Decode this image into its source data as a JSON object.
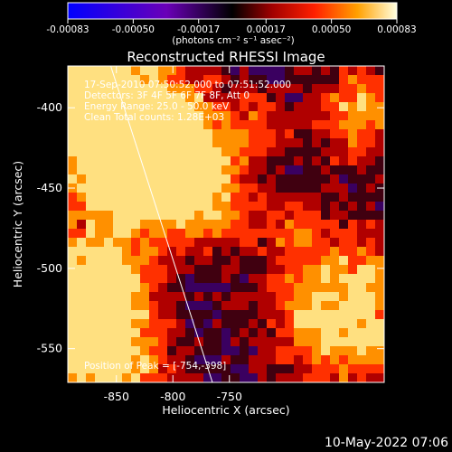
{
  "chart_data": {
    "type": "heatmap",
    "title": "Reconstructed RHESSI Image",
    "xlabel": "Heliocentric X (arcsec)",
    "ylabel": "Heliocentric Y (arcsec)",
    "xlim": [
      -893,
      -613
    ],
    "ylim": [
      -571,
      -374
    ],
    "x_ticks": [
      -850,
      -800,
      -750
    ],
    "x_tick_labels": [
      "-850",
      "-800",
      "-750"
    ],
    "y_ticks": [
      -400,
      -450,
      -500,
      -550
    ],
    "y_tick_labels": [
      "-400",
      "-450",
      "-500",
      "-550"
    ],
    "colorbar": {
      "range": [
        -0.00083,
        0.00083
      ],
      "ticks": [
        -0.00083,
        -0.0005,
        -0.00017,
        0.00017,
        0.0005,
        0.00083
      ],
      "tick_labels": [
        "-0.00083",
        "-0.00050",
        "-0.00017",
        "0.00017",
        "0.00050",
        "0.00083"
      ],
      "unit_label": "(photons cm⁻² s⁻¹ asec⁻²)"
    },
    "annotations": [
      "17-Sep-2010 07:50:52.000 to 07:51:52.000",
      "Detectors: 3F 4F 5F 6F 7F 8F, Att 0",
      "Energy Range: 25.0 - 50.0 keV",
      "Clean   Total counts: 1.28E+03"
    ],
    "peak_label": "Position of Peak = [-754,-398]",
    "limb_line": {
      "x": [
        -855,
        -765
      ],
      "y": [
        -374,
        -571
      ]
    }
  },
  "footer": {
    "date": "10-May-2022 07:06"
  }
}
